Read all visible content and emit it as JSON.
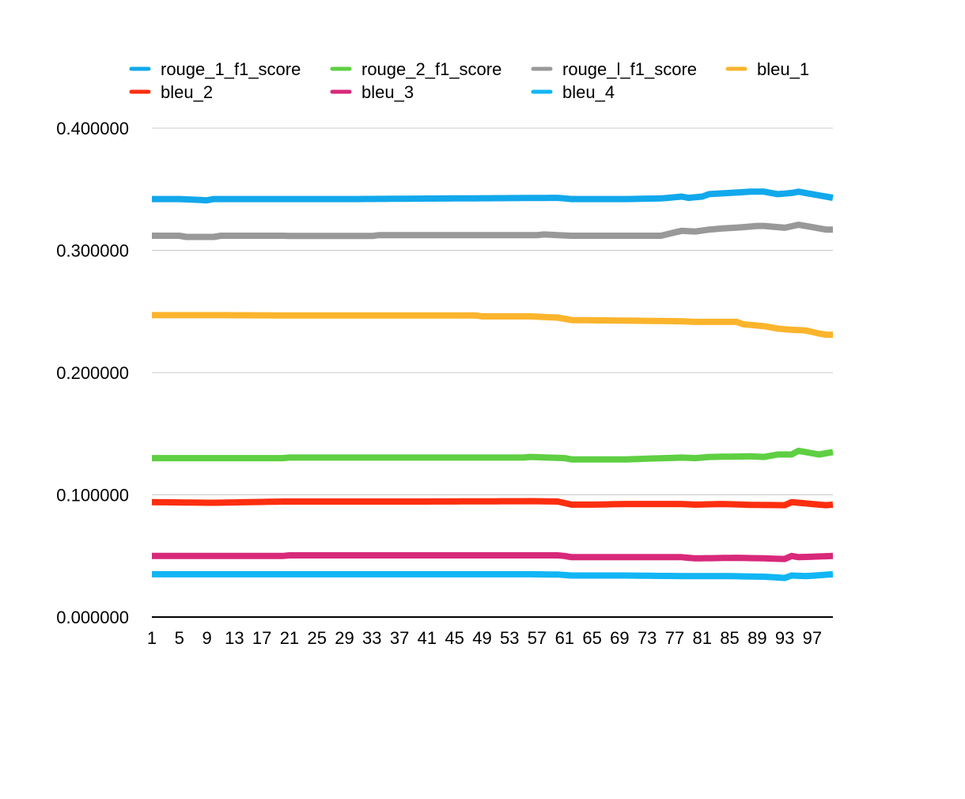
{
  "chart_data": {
    "type": "line",
    "title": "",
    "xlabel": "",
    "ylabel": "",
    "ylim": [
      0,
      0.4
    ],
    "yticks": [
      "0.000000",
      "0.100000",
      "0.200000",
      "0.300000",
      "0.400000"
    ],
    "ytick_values": [
      0,
      0.1,
      0.2,
      0.3,
      0.4
    ],
    "xticks": [
      "1",
      "5",
      "9",
      "13",
      "17",
      "21",
      "25",
      "29",
      "33",
      "37",
      "41",
      "45",
      "49",
      "53",
      "57",
      "61",
      "65",
      "69",
      "73",
      "77",
      "81",
      "85",
      "89",
      "93",
      "97"
    ],
    "x_count": 100,
    "grid": true,
    "legend_position": "top",
    "series": [
      {
        "name": "rouge_1_f1_score",
        "color": "#12a8ec",
        "anchors": [
          [
            1,
            0.342
          ],
          [
            5,
            0.342
          ],
          [
            9,
            0.341
          ],
          [
            10,
            0.342
          ],
          [
            30,
            0.342
          ],
          [
            45,
            0.3425
          ],
          [
            60,
            0.343
          ],
          [
            62,
            0.342
          ],
          [
            70,
            0.342
          ],
          [
            75,
            0.3425
          ],
          [
            78,
            0.344
          ],
          [
            79,
            0.343
          ],
          [
            81,
            0.344
          ],
          [
            82,
            0.346
          ],
          [
            85,
            0.347
          ],
          [
            88,
            0.348
          ],
          [
            90,
            0.348
          ],
          [
            92,
            0.346
          ],
          [
            94,
            0.347
          ],
          [
            95,
            0.348
          ],
          [
            97,
            0.346
          ],
          [
            99,
            0.344
          ],
          [
            100,
            0.343
          ]
        ]
      },
      {
        "name": "rouge_2_f1_score",
        "color": "#5fcf43",
        "anchors": [
          [
            1,
            0.13
          ],
          [
            20,
            0.13
          ],
          [
            21,
            0.1305
          ],
          [
            55,
            0.1305
          ],
          [
            56,
            0.131
          ],
          [
            61,
            0.13
          ],
          [
            62,
            0.129
          ],
          [
            70,
            0.129
          ],
          [
            78,
            0.1305
          ],
          [
            80,
            0.13
          ],
          [
            82,
            0.131
          ],
          [
            88,
            0.1315
          ],
          [
            90,
            0.131
          ],
          [
            92,
            0.133
          ],
          [
            94,
            0.133
          ],
          [
            95,
            0.136
          ],
          [
            97,
            0.134
          ],
          [
            98,
            0.133
          ],
          [
            100,
            0.135
          ]
        ]
      },
      {
        "name": "rouge_l_f1_score",
        "color": "#999999",
        "anchors": [
          [
            1,
            0.312
          ],
          [
            5,
            0.312
          ],
          [
            6,
            0.311
          ],
          [
            10,
            0.311
          ],
          [
            11,
            0.312
          ],
          [
            20,
            0.312
          ],
          [
            21,
            0.3118
          ],
          [
            33,
            0.3118
          ],
          [
            34,
            0.3125
          ],
          [
            57,
            0.3125
          ],
          [
            58,
            0.313
          ],
          [
            62,
            0.312
          ],
          [
            75,
            0.312
          ],
          [
            78,
            0.316
          ],
          [
            80,
            0.3155
          ],
          [
            82,
            0.317
          ],
          [
            84,
            0.318
          ],
          [
            87,
            0.319
          ],
          [
            89,
            0.32
          ],
          [
            90,
            0.32
          ],
          [
            93,
            0.3185
          ],
          [
            95,
            0.321
          ],
          [
            97,
            0.319
          ],
          [
            99,
            0.317
          ],
          [
            100,
            0.317
          ]
        ]
      },
      {
        "name": "bleu_1",
        "color": "#fbb42c",
        "anchors": [
          [
            1,
            0.247
          ],
          [
            10,
            0.247
          ],
          [
            20,
            0.2468
          ],
          [
            40,
            0.2468
          ],
          [
            48,
            0.2468
          ],
          [
            49,
            0.246
          ],
          [
            56,
            0.246
          ],
          [
            60,
            0.245
          ],
          [
            61,
            0.244
          ],
          [
            62,
            0.243
          ],
          [
            78,
            0.242
          ],
          [
            80,
            0.2415
          ],
          [
            86,
            0.2415
          ],
          [
            87,
            0.2395
          ],
          [
            90,
            0.238
          ],
          [
            92,
            0.236
          ],
          [
            94,
            0.235
          ],
          [
            96,
            0.2345
          ],
          [
            98,
            0.232
          ],
          [
            99,
            0.231
          ],
          [
            100,
            0.231
          ]
        ]
      },
      {
        "name": "bleu_2",
        "color": "#fc2e0f",
        "anchors": [
          [
            1,
            0.094
          ],
          [
            10,
            0.0935
          ],
          [
            20,
            0.0945
          ],
          [
            40,
            0.0945
          ],
          [
            56,
            0.0948
          ],
          [
            60,
            0.0945
          ],
          [
            62,
            0.092
          ],
          [
            65,
            0.092
          ],
          [
            70,
            0.0925
          ],
          [
            78,
            0.0925
          ],
          [
            80,
            0.092
          ],
          [
            84,
            0.0925
          ],
          [
            88,
            0.0918
          ],
          [
            93,
            0.0915
          ],
          [
            94,
            0.094
          ],
          [
            96,
            0.093
          ],
          [
            99,
            0.0915
          ],
          [
            100,
            0.092
          ]
        ]
      },
      {
        "name": "bleu_3",
        "color": "#d8297a",
        "anchors": [
          [
            1,
            0.05
          ],
          [
            20,
            0.05
          ],
          [
            21,
            0.0505
          ],
          [
            56,
            0.0505
          ],
          [
            60,
            0.0505
          ],
          [
            61,
            0.05
          ],
          [
            62,
            0.049
          ],
          [
            70,
            0.049
          ],
          [
            78,
            0.049
          ],
          [
            80,
            0.048
          ],
          [
            86,
            0.0485
          ],
          [
            90,
            0.048
          ],
          [
            93,
            0.0475
          ],
          [
            94,
            0.05
          ],
          [
            95,
            0.049
          ],
          [
            100,
            0.05
          ]
        ]
      },
      {
        "name": "bleu_4",
        "color": "#12b6f4",
        "anchors": [
          [
            1,
            0.035
          ],
          [
            30,
            0.035
          ],
          [
            56,
            0.035
          ],
          [
            60,
            0.0348
          ],
          [
            62,
            0.034
          ],
          [
            70,
            0.034
          ],
          [
            78,
            0.0335
          ],
          [
            85,
            0.0335
          ],
          [
            90,
            0.033
          ],
          [
            93,
            0.032
          ],
          [
            94,
            0.034
          ],
          [
            96,
            0.0335
          ],
          [
            100,
            0.035
          ]
        ]
      }
    ]
  }
}
